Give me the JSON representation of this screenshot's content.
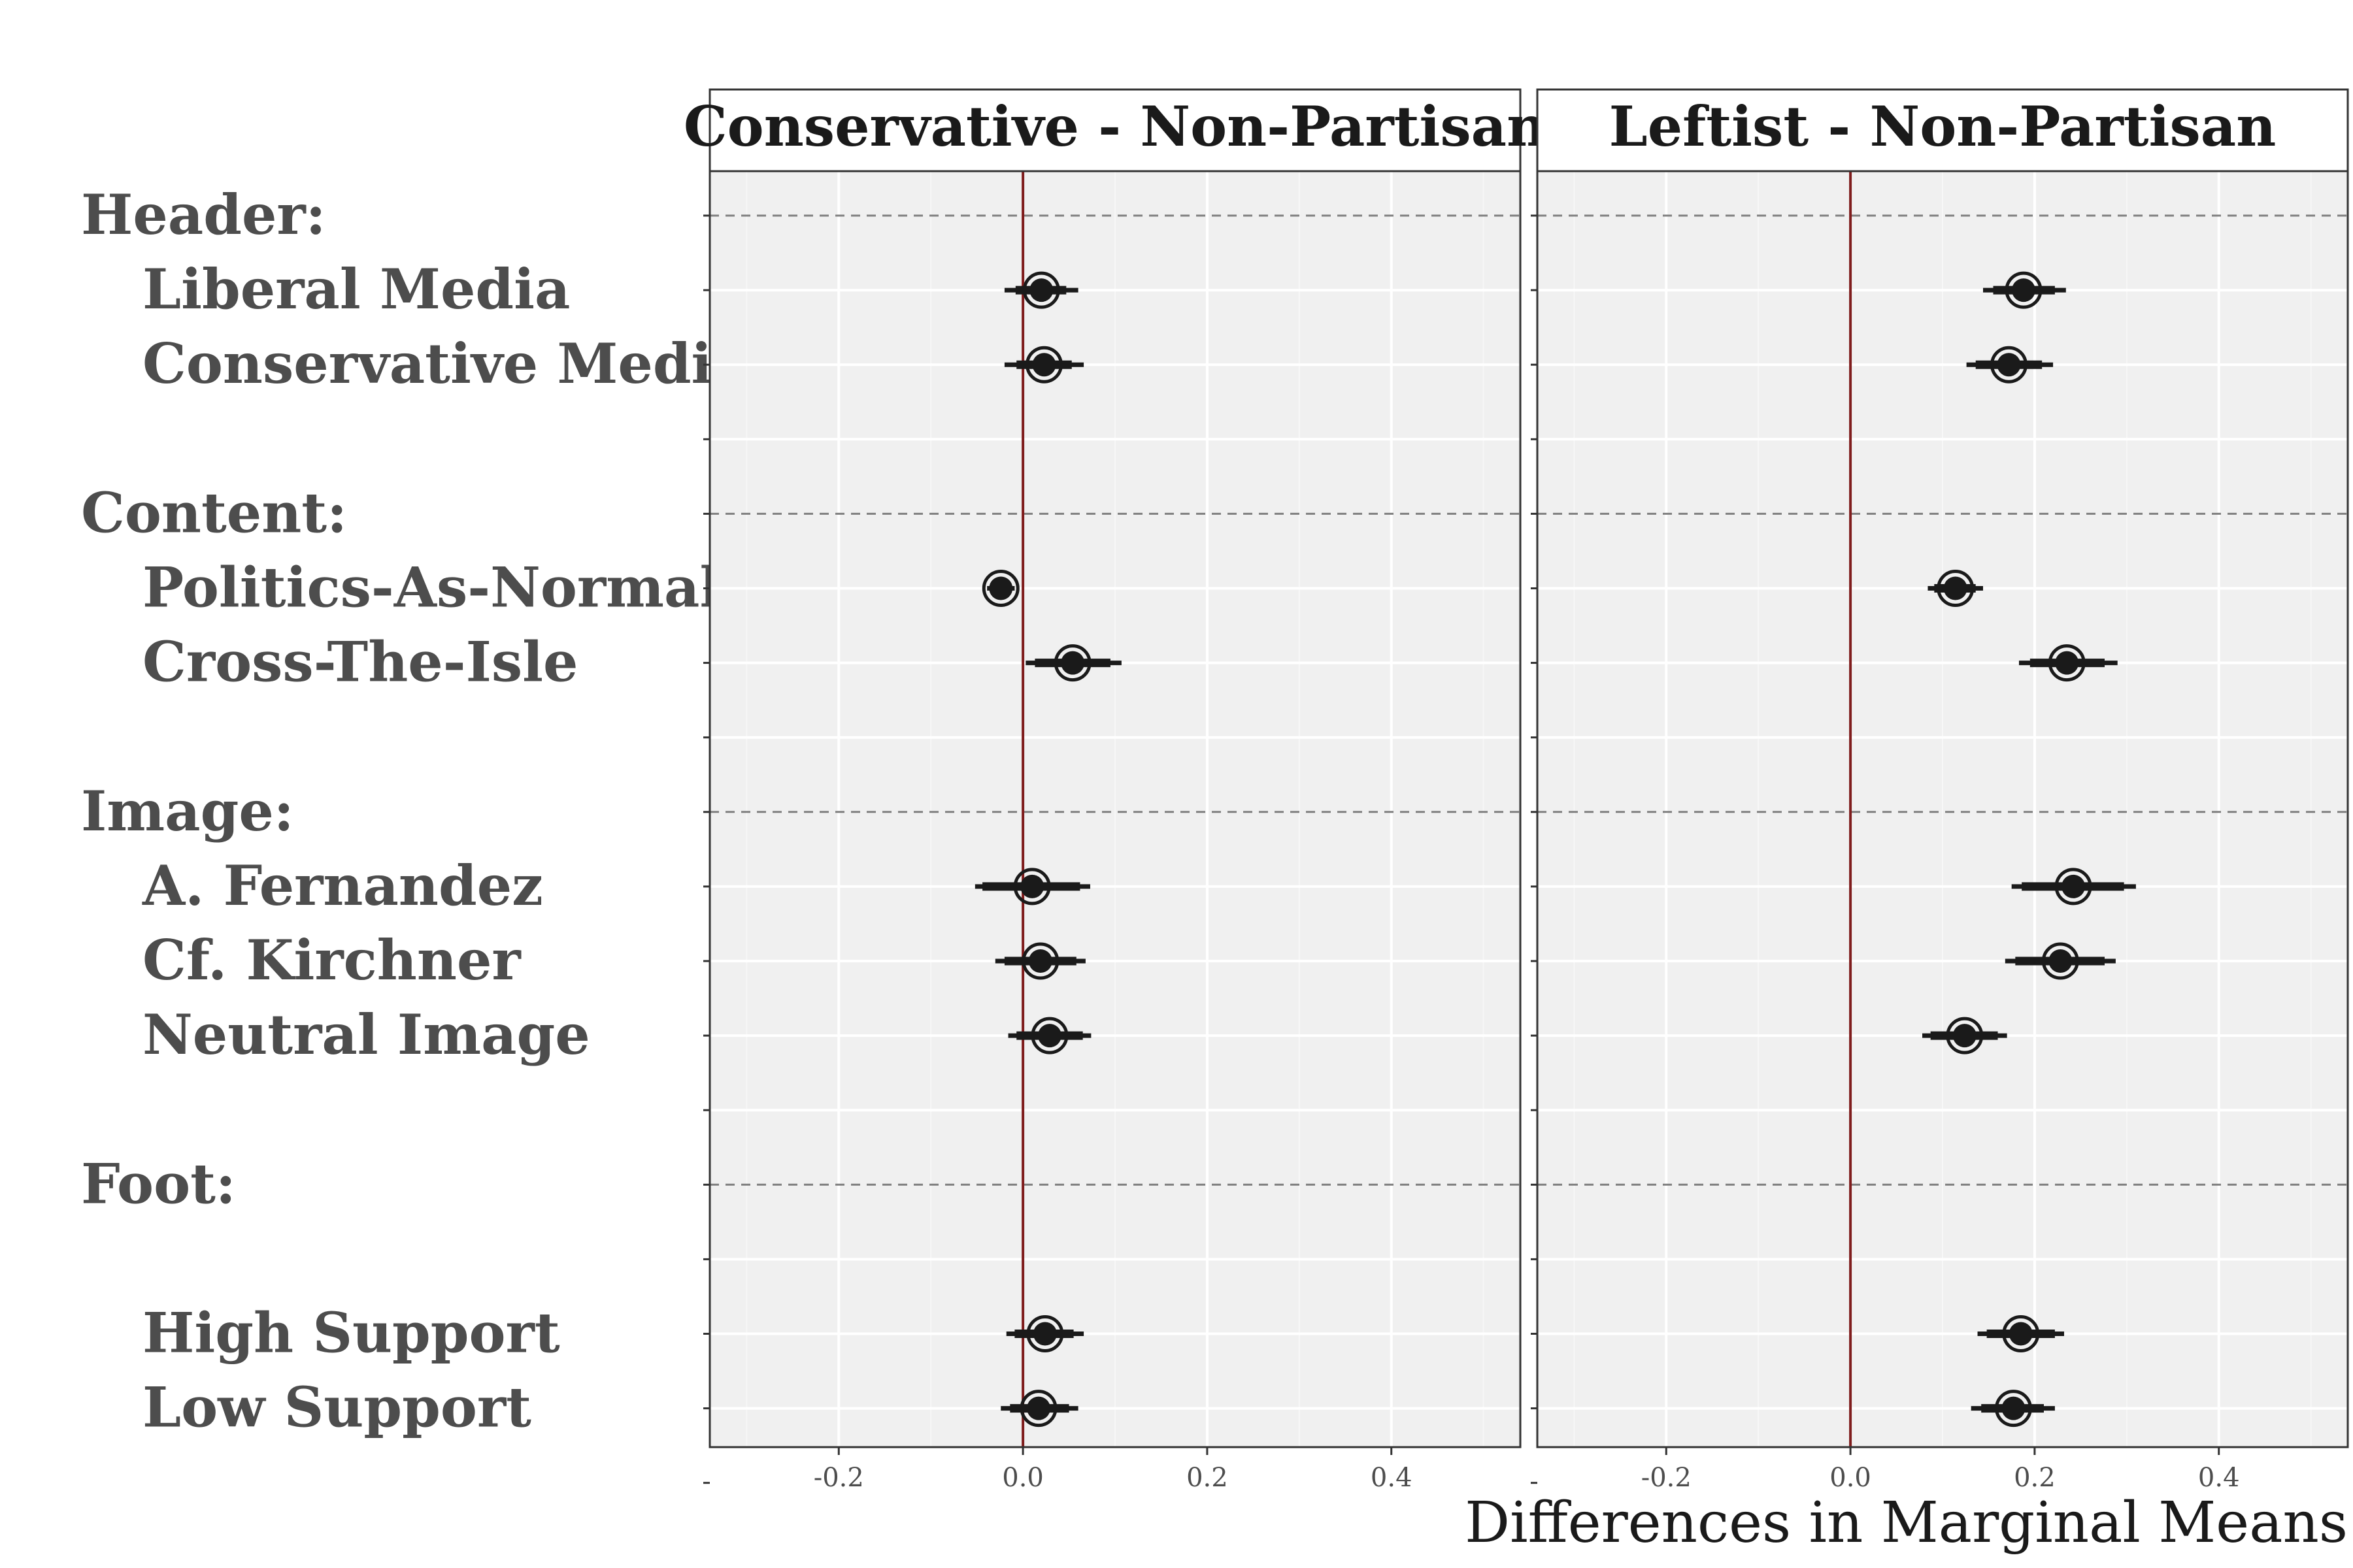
{
  "chart_data": {
    "type": "scatter",
    "subtype": "faceted coefficient plot with confidence intervals",
    "xlabel": "Differences in Marginal Means",
    "ylabel": "",
    "xlim": [
      -0.34,
      0.54
    ],
    "x_ticks": [
      -0.2,
      0.0,
      0.2,
      0.4
    ],
    "x_tick_labels": [
      "-0.2",
      "0.0",
      "0.2",
      "0.4"
    ],
    "reference_line": 0.0,
    "grid": true,
    "legend": "none",
    "colors": {
      "panel_background": "#f0f0f0",
      "gridline": "#ffffff",
      "reference_line": "#7f1d1d",
      "point": "#1a1a1a",
      "group_separator": "#808080",
      "row_label": "#4d4d4d"
    },
    "rows": [
      {
        "label": "Header:",
        "kind": "group"
      },
      {
        "label": "Liberal Media",
        "kind": "level"
      },
      {
        "label": "Conservative Media",
        "kind": "level"
      },
      {
        "label": "",
        "kind": "blank"
      },
      {
        "label": "Content:",
        "kind": "group"
      },
      {
        "label": "Politics-As-Normal",
        "kind": "level"
      },
      {
        "label": "Cross-The-Isle",
        "kind": "level"
      },
      {
        "label": "",
        "kind": "blank"
      },
      {
        "label": "Image:",
        "kind": "group"
      },
      {
        "label": "A. Fernandez",
        "kind": "level"
      },
      {
        "label": "Cf. Kirchner",
        "kind": "level"
      },
      {
        "label": "Neutral Image",
        "kind": "level"
      },
      {
        "label": "",
        "kind": "blank"
      },
      {
        "label": "Foot:",
        "kind": "group"
      },
      {
        "label": "",
        "kind": "blank"
      },
      {
        "label": "High Support",
        "kind": "level"
      },
      {
        "label": "Low Support",
        "kind": "level"
      },
      {
        "label": "",
        "kind": "blank"
      }
    ],
    "panels": [
      {
        "title": "Conservative - Non-Partisan",
        "points": [
          {
            "label": "Liberal Media",
            "estimate": 0.02,
            "ci90": [
              -0.008,
              0.047
            ],
            "ci95": [
              -0.02,
              0.06
            ]
          },
          {
            "label": "Conservative Media",
            "estimate": 0.023,
            "ci90": [
              -0.007,
              0.053
            ],
            "ci95": [
              -0.02,
              0.066
            ]
          },
          {
            "label": "Politics-As-Normal",
            "estimate": -0.024,
            "ci90": [
              -0.034,
              -0.014
            ],
            "ci95": [
              -0.039,
              -0.009
            ]
          },
          {
            "label": "Cross-The-Isle",
            "estimate": 0.054,
            "ci90": [
              0.013,
              0.095
            ],
            "ci95": [
              0.003,
              0.107
            ]
          },
          {
            "label": "A. Fernandez",
            "estimate": 0.01,
            "ci90": [
              -0.044,
              0.062
            ],
            "ci95": [
              -0.052,
              0.073
            ]
          },
          {
            "label": "Cf. Kirchner",
            "estimate": 0.019,
            "ci90": [
              -0.02,
              0.058
            ],
            "ci95": [
              -0.03,
              0.068
            ]
          },
          {
            "label": "Neutral Image",
            "estimate": 0.029,
            "ci90": [
              -0.007,
              0.065
            ],
            "ci95": [
              -0.016,
              0.074
            ]
          },
          {
            "label": "High Support",
            "estimate": 0.024,
            "ci90": [
              -0.009,
              0.055
            ],
            "ci95": [
              -0.018,
              0.066
            ]
          },
          {
            "label": "Low Support",
            "estimate": 0.017,
            "ci90": [
              -0.014,
              0.05
            ],
            "ci95": [
              -0.024,
              0.06
            ]
          }
        ]
      },
      {
        "title": "Leftist - Non-Partisan",
        "points": [
          {
            "label": "Liberal Media",
            "estimate": 0.188,
            "ci90": [
              0.155,
              0.222
            ],
            "ci95": [
              0.144,
              0.234
            ]
          },
          {
            "label": "Conservative Media",
            "estimate": 0.172,
            "ci90": [
              0.136,
              0.208
            ],
            "ci95": [
              0.126,
              0.22
            ]
          },
          {
            "label": "Politics-As-Normal",
            "estimate": 0.114,
            "ci90": [
              0.091,
              0.136
            ],
            "ci95": [
              0.084,
              0.144
            ]
          },
          {
            "label": "Cross-The-Isle",
            "estimate": 0.235,
            "ci90": [
              0.195,
              0.276
            ],
            "ci95": [
              0.183,
              0.29
            ]
          },
          {
            "label": "A. Fernandez",
            "estimate": 0.242,
            "ci90": [
              0.186,
              0.297
            ],
            "ci95": [
              0.175,
              0.31
            ]
          },
          {
            "label": "Cf. Kirchner",
            "estimate": 0.228,
            "ci90": [
              0.179,
              0.276
            ],
            "ci95": [
              0.168,
              0.288
            ]
          },
          {
            "label": "Neutral Image",
            "estimate": 0.124,
            "ci90": [
              0.087,
              0.16
            ],
            "ci95": [
              0.078,
              0.17
            ]
          },
          {
            "label": "High Support",
            "estimate": 0.185,
            "ci90": [
              0.148,
              0.222
            ],
            "ci95": [
              0.138,
              0.232
            ]
          },
          {
            "label": "Low Support",
            "estimate": 0.177,
            "ci90": [
              0.142,
              0.21
            ],
            "ci95": [
              0.131,
              0.222
            ]
          }
        ]
      }
    ]
  }
}
